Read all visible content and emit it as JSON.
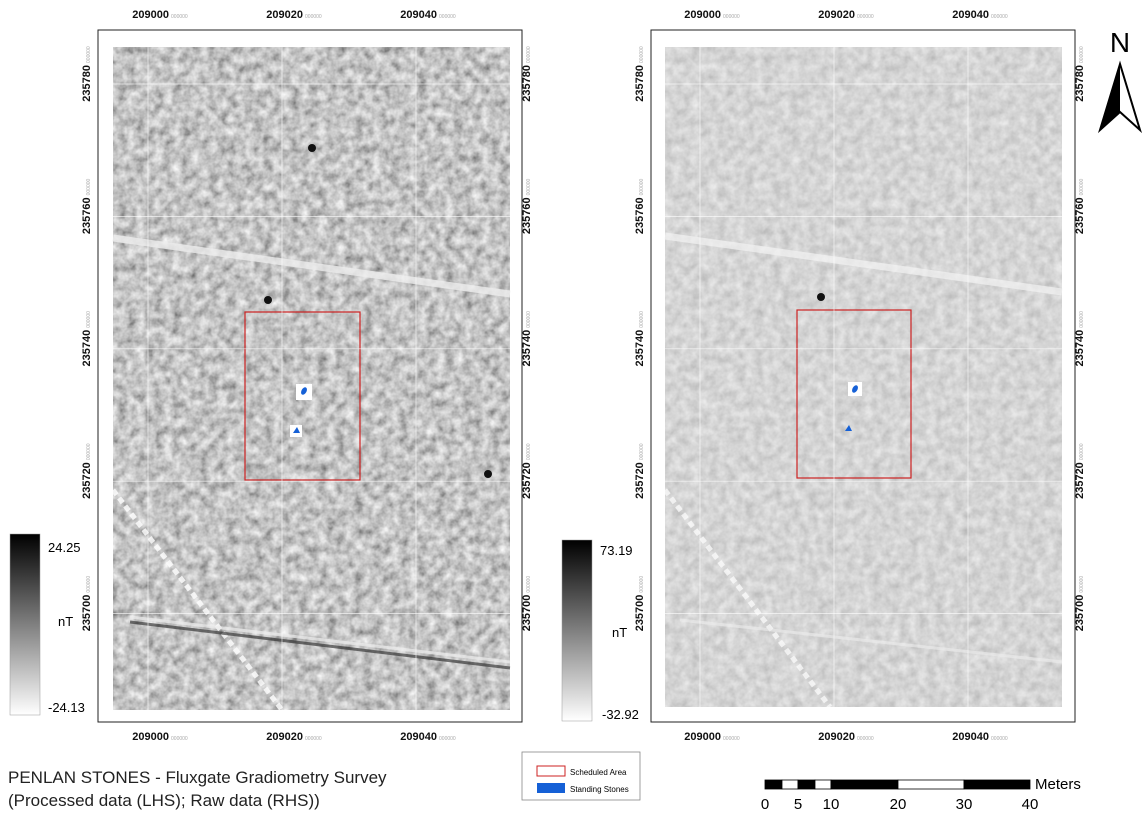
{
  "title": [
    "PENLAN STONES - Fluxgate Gradiometry Survey",
    "(Processed data (LHS); Raw data (RHS))"
  ],
  "panels": [
    {
      "x_labels": [
        "209000",
        "209020",
        "209040"
      ],
      "y_labels": [
        "235780",
        "235760",
        "235740",
        "235720",
        "235700"
      ],
      "coord_suffix": "000000",
      "color_ramp": {
        "max": "24.25",
        "unit": "nT",
        "min": "-24.13"
      }
    },
    {
      "x_labels": [
        "209000",
        "209020",
        "209040"
      ],
      "y_labels": [
        "235780",
        "235760",
        "235740",
        "235720",
        "235700"
      ],
      "coord_suffix": "000000",
      "color_ramp": {
        "max": "73.19",
        "unit": "nT",
        "min": "-32.92"
      }
    }
  ],
  "legend": {
    "items": [
      "Scheduled Area",
      "Standing Stones"
    ]
  },
  "scale_bar": {
    "labels": [
      "0",
      "5",
      "10",
      "20",
      "30",
      "40"
    ],
    "unit": "Meters"
  },
  "north": "N"
}
